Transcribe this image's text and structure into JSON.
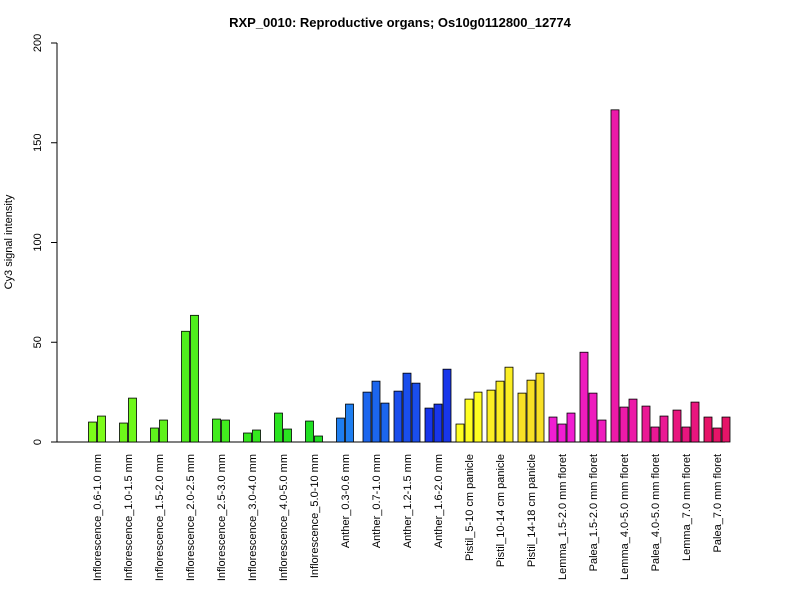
{
  "chart_data": {
    "type": "bar",
    "title": "RXP_0010: Reproductive organs; Os10g0112800_12774",
    "xlabel": "",
    "ylabel": "Cy3 signal intensity",
    "ylim": [
      0,
      200
    ],
    "yticks": [
      "0",
      "50",
      "100",
      "150",
      "200"
    ],
    "grid": false,
    "legend": "none",
    "groups": [
      {
        "label": "Inflorescence_0.6-1.0 mm",
        "color": "#7cfc1a",
        "values": [
          10,
          13
        ]
      },
      {
        "label": "Inflorescence_1.0-1.5 mm",
        "color": "#6ef71a",
        "values": [
          9.5,
          22
        ]
      },
      {
        "label": "Inflorescence_1.5-2.0 mm",
        "color": "#5ff21c",
        "values": [
          7,
          11
        ]
      },
      {
        "label": "Inflorescence_2.0-2.5 mm",
        "color": "#4fef1c",
        "values": [
          55.5,
          63.5
        ]
      },
      {
        "label": "Inflorescence_2.5-3.0 mm",
        "color": "#42ec1e",
        "values": [
          11.5,
          11
        ]
      },
      {
        "label": "Inflorescence_3.0-4.0 mm",
        "color": "#35e81e",
        "values": [
          4.5,
          6
        ]
      },
      {
        "label": "Inflorescence_4.0-5.0 mm",
        "color": "#2ae420",
        "values": [
          14.5,
          6.5
        ]
      },
      {
        "label": "Inflorescence_5.0-10 mm",
        "color": "#20e022",
        "values": [
          10.5,
          3
        ]
      },
      {
        "label": "Anther_0.3-0.6 mm",
        "color": "#1e7ef0",
        "values": [
          12,
          19
        ]
      },
      {
        "label": "Anther_0.7-1.0 mm",
        "color": "#1c66ee",
        "values": [
          25,
          30.5,
          19.5
        ]
      },
      {
        "label": "Anther_1.2-1.5 mm",
        "color": "#1a4eec",
        "values": [
          25.5,
          34.5,
          29.5
        ]
      },
      {
        "label": "Anther_1.6-2.0 mm",
        "color": "#1836ea",
        "values": [
          17,
          19,
          36.5
        ]
      },
      {
        "label": "Pistil_5-10 cm panicle",
        "color": "#ffff22",
        "values": [
          9,
          21.5,
          25
        ]
      },
      {
        "label": "Pistil_10-14 cm panicle",
        "color": "#fbee24",
        "values": [
          26,
          30.5,
          37.5
        ]
      },
      {
        "label": "Pistil_14-18 cm panicle",
        "color": "#f8e026",
        "values": [
          24.5,
          31,
          34.5
        ]
      },
      {
        "label": "Lemma_1.5-2.0 mm floret",
        "color": "#f01ed2",
        "values": [
          12.5,
          9,
          14.5
        ]
      },
      {
        "label": "Palea_1.5-2.0 mm floret",
        "color": "#ee1cbe",
        "values": [
          45,
          24.5,
          11
        ]
      },
      {
        "label": "Lemma_4.0-5.0 mm floret",
        "color": "#ec1aa8",
        "values": [
          166.5,
          17.5,
          21.5
        ]
      },
      {
        "label": "Palea_4.0-5.0 mm floret",
        "color": "#ea1894",
        "values": [
          18,
          7.5,
          13
        ]
      },
      {
        "label": "Lemma_7.0 mm floret",
        "color": "#e8167e",
        "values": [
          16,
          7.5,
          20
        ]
      },
      {
        "label": "Palea_7.0 mm floret",
        "color": "#e61468",
        "values": [
          12.5,
          7,
          12.5
        ]
      }
    ]
  }
}
